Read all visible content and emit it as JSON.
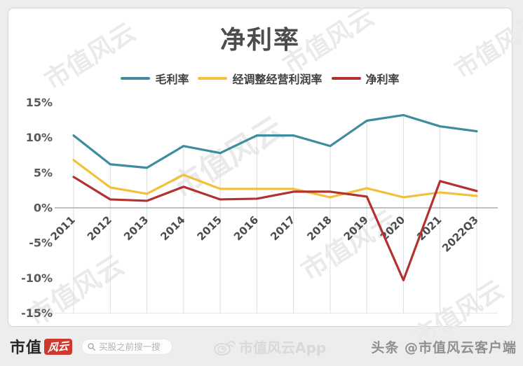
{
  "watermark": {
    "text": "市值风云"
  },
  "chart_data": {
    "type": "line",
    "title": "净利率",
    "categories": [
      "2011",
      "2012",
      "2013",
      "2014",
      "2015",
      "2016",
      "2017",
      "2018",
      "2019",
      "2020",
      "2021",
      "2022Q3"
    ],
    "series": [
      {
        "name": "毛利率",
        "color": "#3e8ca0",
        "values": [
          10.3,
          6.2,
          5.7,
          8.8,
          7.8,
          10.3,
          10.3,
          8.8,
          12.4,
          13.2,
          11.6,
          10.9
        ]
      },
      {
        "name": "经调整经营利润率",
        "color": "#f2c13c",
        "values": [
          6.8,
          2.9,
          2.0,
          4.7,
          2.7,
          2.7,
          2.7,
          1.5,
          2.8,
          1.5,
          2.2,
          1.7
        ]
      },
      {
        "name": "净利率",
        "color": "#b23230",
        "values": [
          4.4,
          1.2,
          1.0,
          3.0,
          1.2,
          1.3,
          2.3,
          2.3,
          1.6,
          -10.3,
          3.8,
          2.4
        ]
      }
    ],
    "ylim": [
      -15,
      15
    ],
    "yticks": [
      15,
      10,
      5,
      0,
      -5,
      -10,
      -15
    ],
    "ytick_suffix": "%",
    "grid": "vertical drop lines from top series to plot bottom",
    "legend_position": "top"
  },
  "footer": {
    "brand_text": "市值",
    "brand_badge": "风云",
    "search_placeholder": "买股之前搜一搜",
    "app_watermark": "市值风云App",
    "social_handle": "头条 @市值风云客户端"
  },
  "colors": {
    "gross_margin": "#3e8ca0",
    "adj_operating_margin": "#f2c13c",
    "net_margin": "#b23230",
    "brand_red": "#ce382e",
    "axis_line": "#ababab",
    "drop_line": "#dcdcdc"
  }
}
